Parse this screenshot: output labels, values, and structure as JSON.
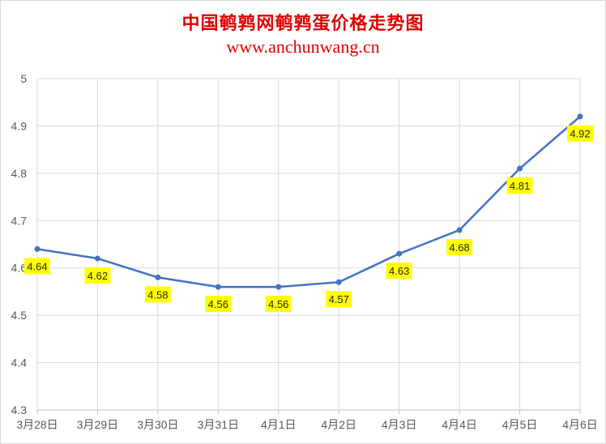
{
  "title": "中国鹌鹑网鹌鹑蛋价格走势图",
  "subtitle": "www.anchunwang.cn",
  "colors": {
    "title": "#e00000",
    "line": "#4472c4",
    "label_bg": "#ffff00",
    "grid": "#d9d9d9"
  },
  "chart_data": {
    "type": "line",
    "title": "中国鹌鹑网鹌鹑蛋价格走势图",
    "subtitle": "www.anchunwang.cn",
    "xlabel": "",
    "ylabel": "",
    "categories": [
      "3月28日",
      "3月29日",
      "3月30日",
      "3月31日",
      "4月1日",
      "4月2日",
      "4月3日",
      "4月4日",
      "4月5日",
      "4月6日"
    ],
    "series": [
      {
        "values": [
          4.64,
          4.62,
          4.58,
          4.56,
          4.56,
          4.57,
          4.63,
          4.68,
          4.81,
          4.92
        ],
        "data_labels": [
          "4.64",
          "4.62",
          "4.58",
          "4.56",
          "4.56",
          "4.57",
          "4.63",
          "4.68",
          "4.81",
          "4.92"
        ]
      }
    ],
    "ylim": [
      4.3,
      5
    ],
    "yticks": [
      "4.3",
      "4.4",
      "4.5",
      "4.6",
      "4.7",
      "4.8",
      "4.9",
      "5"
    ],
    "grid": true,
    "legend": "none"
  }
}
